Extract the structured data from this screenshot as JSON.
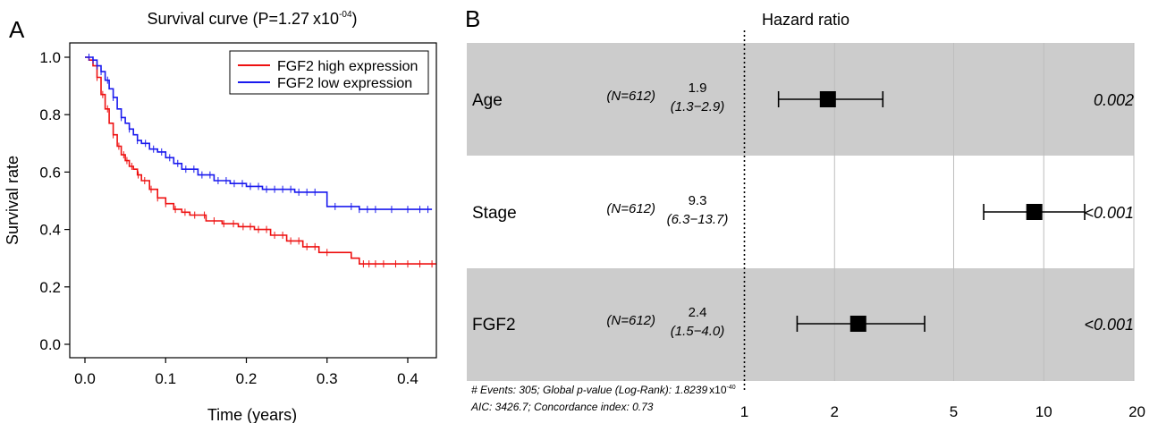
{
  "chart_data": [
    {
      "panel_label": "A",
      "type": "line",
      "subtype": "kaplan-meier",
      "title": {
        "text": "Survival curve (P=1.27",
        "base": "x10",
        "exponent": "-04",
        "close": ")"
      },
      "xlabel": "Time (years)",
      "ylabel": "Survival rate",
      "xlim": [
        0,
        0.44
      ],
      "ylim": [
        0,
        1.0
      ],
      "x_ticks": [
        0.0,
        0.1,
        0.2,
        0.3,
        0.4
      ],
      "x_tick_labels": [
        "0.0",
        "0.1",
        "0.2",
        "0.3",
        "0.4"
      ],
      "y_ticks": [
        0.0,
        0.2,
        0.4,
        0.6,
        0.8,
        1.0
      ],
      "y_tick_labels": [
        "0.0",
        "0.2",
        "0.4",
        "0.6",
        "0.8",
        "1.0"
      ],
      "legend": {
        "position": "top-right"
      },
      "series": [
        {
          "name": "FGF2 high expression",
          "color": "#ee1111",
          "x": [
            0.0,
            0.005,
            0.01,
            0.015,
            0.02,
            0.025,
            0.03,
            0.035,
            0.04,
            0.045,
            0.05,
            0.055,
            0.06,
            0.065,
            0.07,
            0.08,
            0.09,
            0.1,
            0.11,
            0.12,
            0.13,
            0.15,
            0.17,
            0.19,
            0.21,
            0.23,
            0.25,
            0.27,
            0.29,
            0.31,
            0.33,
            0.34,
            0.36,
            0.38,
            0.4,
            0.42,
            0.435
          ],
          "y": [
            1.0,
            0.99,
            0.97,
            0.93,
            0.87,
            0.82,
            0.77,
            0.73,
            0.69,
            0.66,
            0.64,
            0.62,
            0.61,
            0.59,
            0.57,
            0.54,
            0.51,
            0.49,
            0.47,
            0.46,
            0.45,
            0.43,
            0.42,
            0.41,
            0.4,
            0.38,
            0.36,
            0.34,
            0.32,
            0.32,
            0.3,
            0.28,
            0.28,
            0.28,
            0.28,
            0.28,
            0.28
          ],
          "censor_x": [
            0.015,
            0.022,
            0.028,
            0.035,
            0.042,
            0.048,
            0.052,
            0.058,
            0.066,
            0.074,
            0.082,
            0.09,
            0.1,
            0.112,
            0.124,
            0.136,
            0.148,
            0.16,
            0.172,
            0.184,
            0.196,
            0.205,
            0.215,
            0.225,
            0.235,
            0.245,
            0.255,
            0.265,
            0.275,
            0.285,
            0.3,
            0.345,
            0.352,
            0.36,
            0.37,
            0.385,
            0.4,
            0.415,
            0.43
          ]
        },
        {
          "name": "FGF2 low expression",
          "color": "#1a1aee",
          "x": [
            0.0,
            0.01,
            0.015,
            0.02,
            0.025,
            0.03,
            0.035,
            0.04,
            0.045,
            0.05,
            0.055,
            0.06,
            0.065,
            0.07,
            0.08,
            0.09,
            0.1,
            0.11,
            0.12,
            0.14,
            0.16,
            0.18,
            0.2,
            0.22,
            0.24,
            0.26,
            0.28,
            0.29,
            0.3,
            0.32,
            0.34,
            0.36,
            0.38,
            0.4,
            0.42,
            0.43
          ],
          "y": [
            1.0,
            0.99,
            0.97,
            0.95,
            0.92,
            0.89,
            0.86,
            0.82,
            0.79,
            0.77,
            0.75,
            0.73,
            0.71,
            0.7,
            0.68,
            0.67,
            0.65,
            0.63,
            0.61,
            0.59,
            0.57,
            0.56,
            0.55,
            0.54,
            0.54,
            0.53,
            0.53,
            0.53,
            0.48,
            0.48,
            0.47,
            0.47,
            0.47,
            0.47,
            0.47,
            0.47
          ],
          "censor_x": [
            0.005,
            0.01,
            0.015,
            0.02,
            0.028,
            0.035,
            0.045,
            0.055,
            0.065,
            0.075,
            0.085,
            0.095,
            0.105,
            0.115,
            0.125,
            0.135,
            0.145,
            0.155,
            0.165,
            0.175,
            0.185,
            0.195,
            0.205,
            0.215,
            0.225,
            0.235,
            0.245,
            0.255,
            0.265,
            0.275,
            0.285,
            0.31,
            0.33,
            0.34,
            0.35,
            0.36,
            0.38,
            0.4,
            0.415,
            0.425
          ]
        }
      ]
    },
    {
      "panel_label": "B",
      "type": "scatter",
      "subtype": "forest-plot",
      "title": "Hazard ratio",
      "x_scale": "log",
      "xlim": [
        0.87,
        20
      ],
      "reference_line": 1,
      "x_ticks": [
        1,
        2,
        5,
        10,
        20
      ],
      "x_tick_labels": [
        "1",
        "2",
        "5",
        "10",
        "20"
      ],
      "rows": [
        {
          "label": "Age",
          "n": "(N=612)",
          "hr": 1.9,
          "hr_label": "1.9",
          "ci_low": 1.3,
          "ci_high": 2.9,
          "ci_label": "(1.3−2.9)",
          "p": "0.002",
          "shaded": true
        },
        {
          "label": "Stage",
          "n": "(N=612)",
          "hr": 9.3,
          "hr_label": "9.3",
          "ci_low": 6.3,
          "ci_high": 13.7,
          "ci_label": "(6.3−13.7)",
          "p": "<0.001",
          "shaded": false
        },
        {
          "label": "FGF2",
          "n": "(N=612)",
          "hr": 2.4,
          "hr_label": "2.4",
          "ci_low": 1.5,
          "ci_high": 4.0,
          "ci_label": "(1.5−4.0)",
          "p": "<0.001",
          "shaded": true
        }
      ],
      "footer": {
        "line1_prefix": "# Events: 305; Global p-value (Log-Rank): 1.8239",
        "line1_base": "x10",
        "line1_exponent": "-40",
        "line2": "AIC: 3426.7; Concordance index: 0.73"
      },
      "shade_color": "#cccccc"
    }
  ]
}
